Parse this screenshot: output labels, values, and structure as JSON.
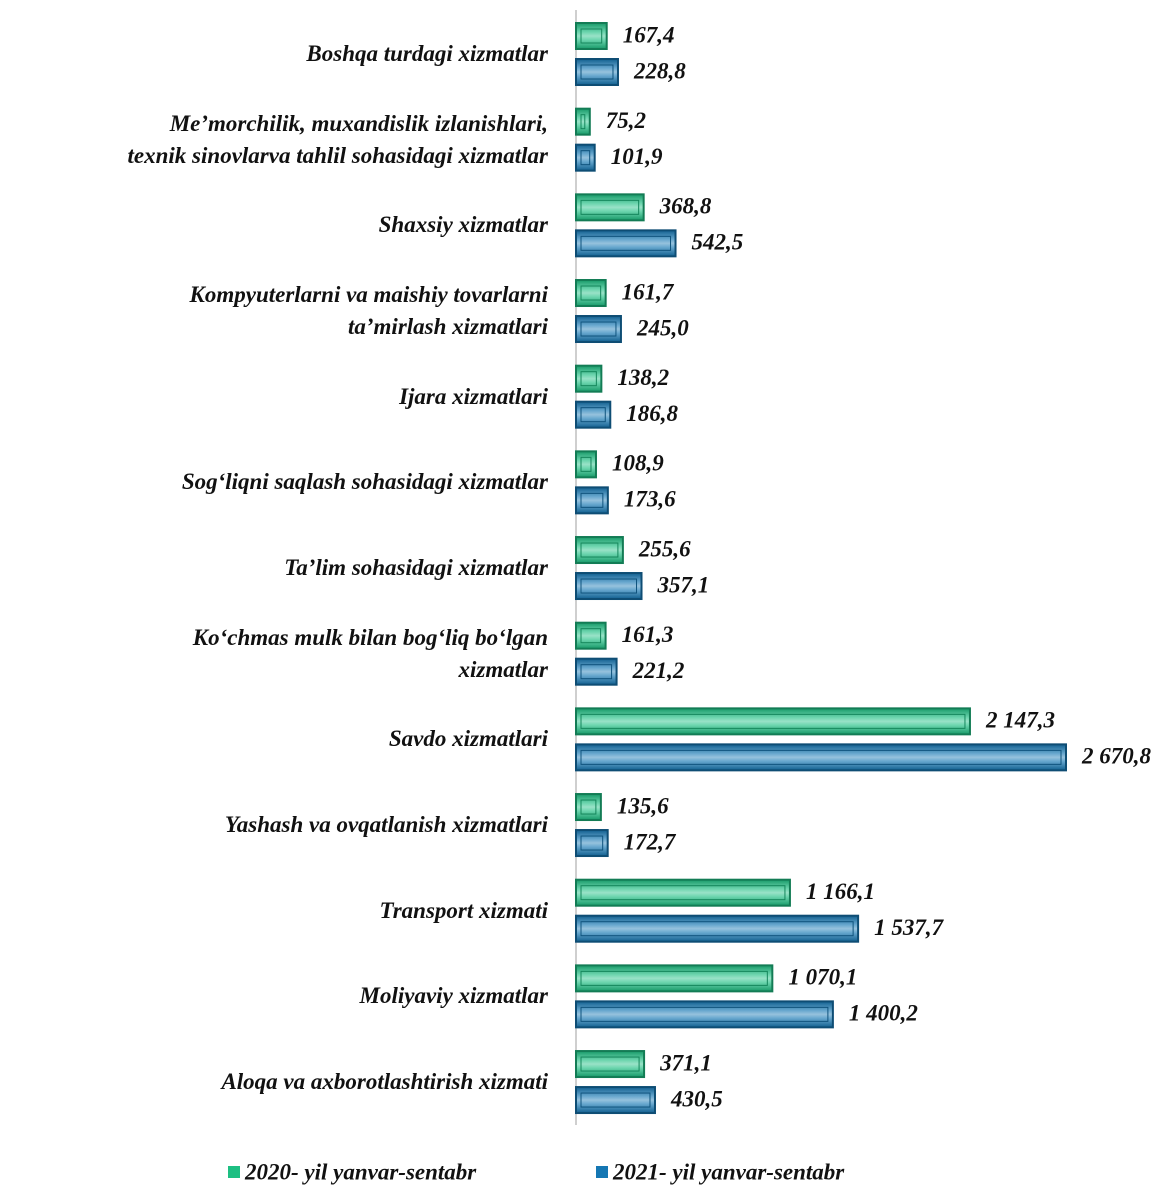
{
  "chart_data": {
    "type": "bar",
    "orientation": "horizontal",
    "categories": [
      "Boshqa turdagi xizmatlar",
      "Me’morchilik, muxandislik izlanishlari,\ntexnik sinovlarva tahlil sohasidagi xizmatlar",
      "Shaxsiy xizmatlar",
      "Kompyuterlarni va maishiy tovarlarni\nta’mirlash xizmatlari",
      "Ijara xizmatlari",
      "Sog‘liqni saqlash sohasidagi xizmatlar",
      "Ta’lim sohasidagi xizmatlar",
      "Ko‘chmas mulk bilan bog‘liq bo‘lgan\nxizmatlar",
      "Savdo xizmatlari",
      "Yashash va ovqatlanish xizmatlari",
      "Transport xizmati",
      "Moliyaviy xizmatlar",
      "Aloqa va axborotlashtirish xizmati"
    ],
    "series": [
      {
        "name": "2020- yil yanvar-sentabr",
        "color": "#1dbf82",
        "values": [
          167.4,
          75.2,
          368.8,
          161.7,
          138.2,
          108.9,
          255.6,
          161.3,
          2147.3,
          135.6,
          1166.1,
          1070.1,
          371.1
        ],
        "value_labels": [
          "167,4",
          "75,2",
          "368,8",
          "161,7",
          "138,2",
          "108,9",
          "255,6",
          "161,3",
          "2 147,3",
          "135,6",
          "1 166,1",
          "1 070,1",
          "371,1"
        ]
      },
      {
        "name": "2021- yil yanvar-sentabr",
        "color": "#1577b3",
        "values": [
          228.8,
          101.9,
          542.5,
          245.0,
          186.8,
          173.6,
          357.1,
          221.2,
          2670.8,
          172.7,
          1537.7,
          1400.2,
          430.5
        ],
        "value_labels": [
          "228,8",
          "101,9",
          "542,5",
          "245,0",
          "186,8",
          "173,6",
          "357,1",
          "221,2",
          "2 670,8",
          "172,7",
          "1 537,7",
          "1 400,2",
          "430,5"
        ]
      }
    ],
    "legend": "bottom"
  }
}
